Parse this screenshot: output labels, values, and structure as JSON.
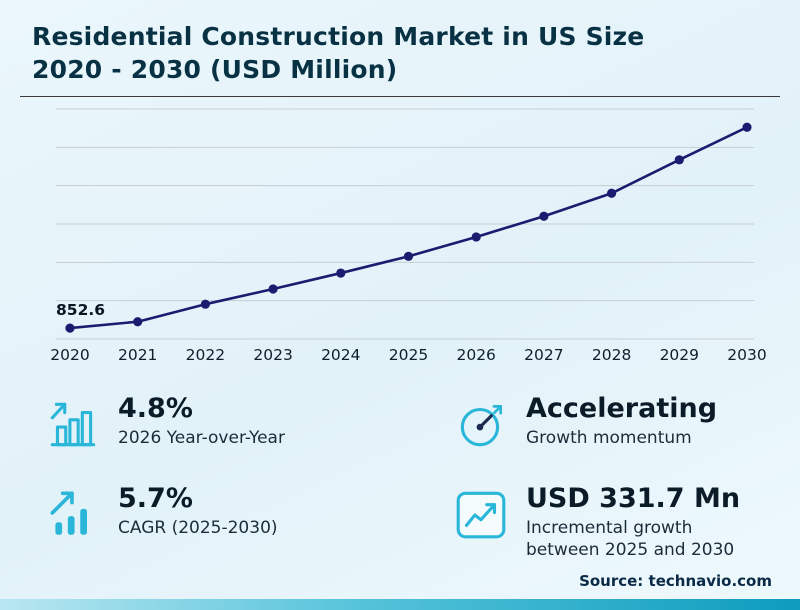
{
  "header": {
    "title_lines": [
      "Residential Construction Market in US Size",
      "2020 - 2030 (USD Million)"
    ]
  },
  "chart_data": {
    "type": "line",
    "title": "Residential Construction Market in US Size 2020 - 2030 (USD Million)",
    "unit": "USD Million",
    "x": [
      "2020",
      "2021",
      "2022",
      "2023",
      "2024",
      "2025",
      "2026",
      "2027",
      "2028",
      "2029",
      "2030"
    ],
    "values": [
      852.6,
      869,
      914,
      953,
      994,
      1037,
      1086.8,
      1140,
      1199,
      1285,
      1368.7
    ],
    "labeled_points": [
      {
        "index": 0,
        "label": "852.6"
      }
    ],
    "ylim": [
      840,
      1395
    ],
    "grid": true,
    "gridline_count": 7,
    "legend": "none",
    "xlabel": "",
    "ylabel": ""
  },
  "stats": [
    {
      "value": "4.8%",
      "label": "2026 Year-over-Year",
      "icon": "bar-chart-icon"
    },
    {
      "value": "Accelerating",
      "label": "Growth momentum",
      "icon": "gauge-icon"
    },
    {
      "value": "5.7%",
      "label": "CAGR (2025-2030)",
      "icon": "trend-up-icon"
    },
    {
      "value": "USD 331.7 Mn",
      "label": "Incremental growth between 2025 and 2030",
      "icon": "chart-box-icon"
    }
  ],
  "footer": {
    "source": "Source: technavio.com"
  },
  "colors": {
    "accent_cyan": "#29b6d8",
    "line_navy": "#1b1b6f",
    "gridline": "#c7cdd2",
    "title_text": "#083244",
    "body_text": "#13222e",
    "axis_label": "#101f2b",
    "point_label": "#0a1622"
  }
}
